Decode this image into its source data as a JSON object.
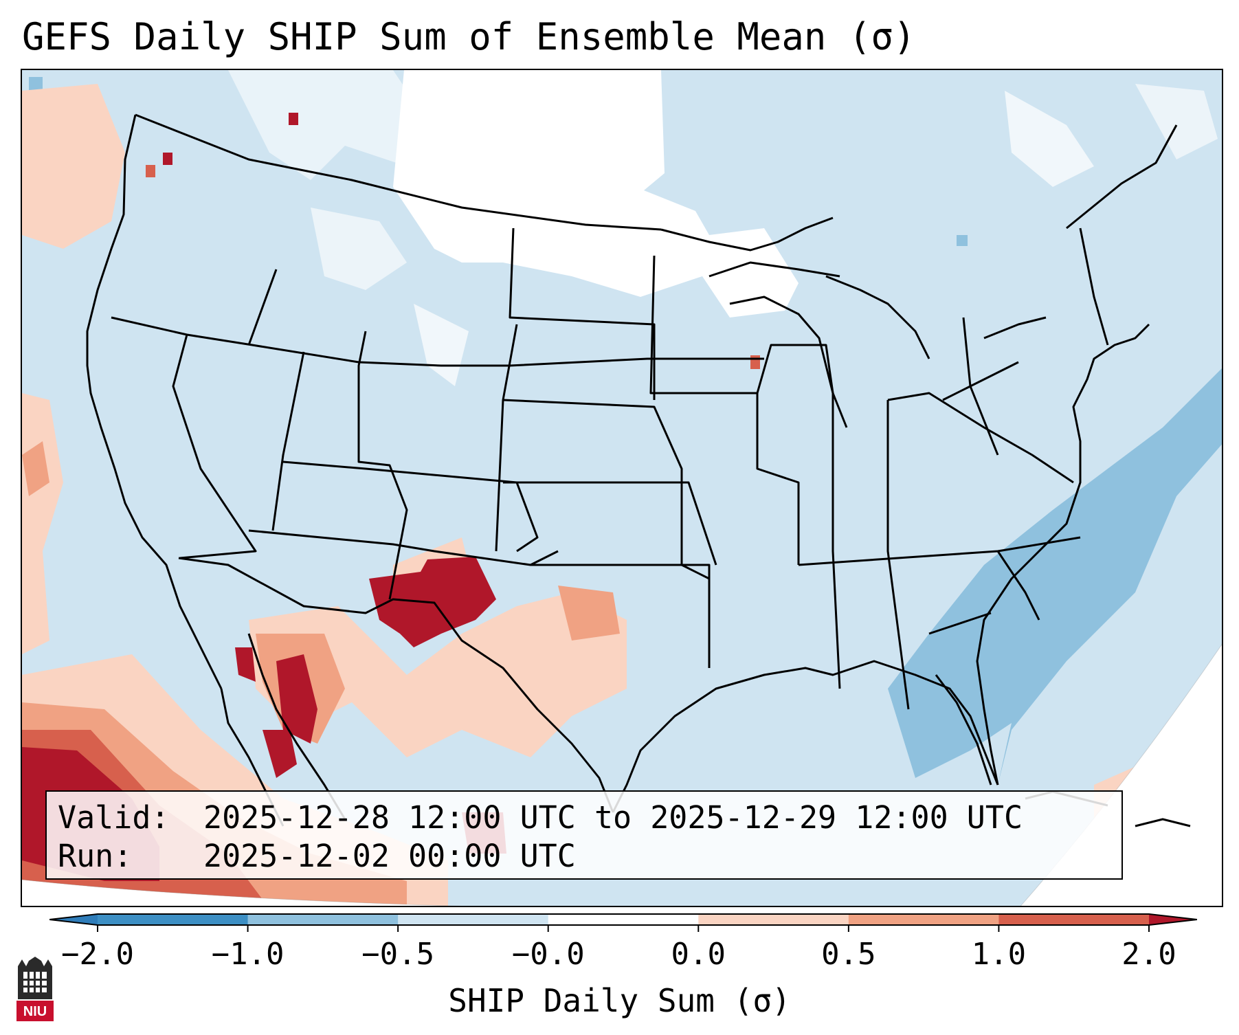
{
  "title": "GEFS Daily SHIP Sum of Ensemble Mean (σ)",
  "info": {
    "valid_label": "Valid:",
    "valid_value": "2025-12-28 12:00 UTC to 2025-12-29 12:00 UTC",
    "run_label": "Run:",
    "run_value": "2025-12-02 00:00 UTC"
  },
  "colorbar": {
    "label": "SHIP Daily Sum (σ)",
    "ticks": [
      "−2.0",
      "−1.0",
      "−0.5",
      "−0.0",
      "0.0",
      "0.5",
      "1.0",
      "2.0"
    ],
    "colors": [
      "#2f7dba",
      "#3d8fc4",
      "#8fc1de",
      "#cfe4f1",
      "#ffffff",
      "#fad4c2",
      "#f0a283",
      "#d7604d",
      "#b0172a"
    ],
    "extend": "both"
  },
  "map": {
    "projection": "Lambert Conformal",
    "region": "Contiguous United States",
    "colors": {
      "background": "#cfe4f1",
      "near_zero": "#ffffff",
      "neg_medium": "#8fc1de",
      "pos_light": "#fad4c2",
      "pos_medium": "#f0a283",
      "pos_high": "#d7604d",
      "pos_extreme": "#b0172a",
      "boundary": "#000000"
    }
  },
  "logo": {
    "text": "NIU"
  }
}
